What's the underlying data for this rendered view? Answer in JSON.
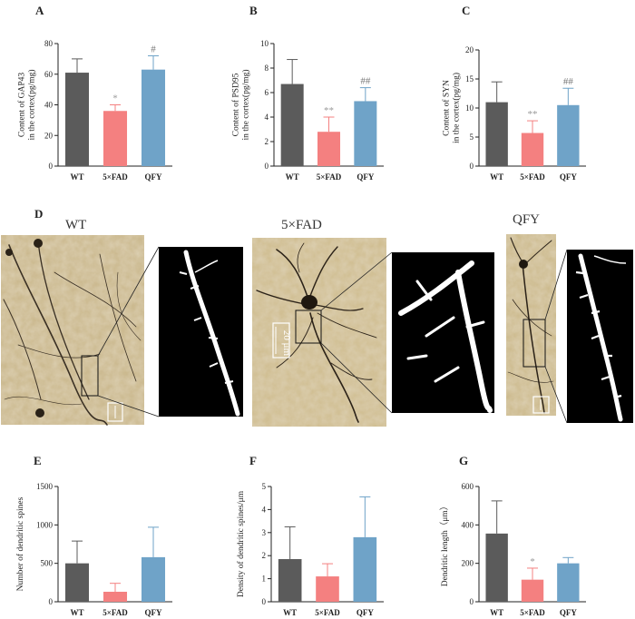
{
  "colors": {
    "WT": "#5b5b5b",
    "5×FAD": "#f48080",
    "QFY": "#6fa3c8",
    "error_bar_WT": "#5b5b5b",
    "error_bar_5×FAD": "#f48080",
    "error_bar_QFY": "#6fa3c8",
    "sig_5×FAD": "#999999",
    "sig_QFY": "#777777"
  },
  "chart_data": [
    {
      "panel": "A",
      "type": "bar",
      "categories": [
        "WT",
        "5×FAD",
        "QFY"
      ],
      "values": [
        61,
        36,
        63
      ],
      "errors": [
        9,
        4,
        9
      ],
      "significance": [
        "",
        "*",
        "#"
      ],
      "ylabel": [
        "Content of GAP43",
        "in  the cortex(pg/mg)"
      ],
      "ylim": [
        0,
        80
      ],
      "yticks": [
        0,
        20,
        40,
        60,
        80
      ]
    },
    {
      "panel": "B",
      "type": "bar",
      "categories": [
        "WT",
        "5×FAD",
        "QFY"
      ],
      "values": [
        6.7,
        2.8,
        5.3
      ],
      "errors": [
        2.0,
        1.2,
        1.1
      ],
      "significance": [
        "",
        "**",
        "##"
      ],
      "ylabel": [
        "Content of PSD95",
        "in the cortex(pg/mg)"
      ],
      "ylim": [
        0,
        10
      ],
      "yticks": [
        0,
        2,
        4,
        6,
        8,
        10
      ]
    },
    {
      "panel": "C",
      "type": "bar",
      "categories": [
        "WT",
        "5×FAD",
        "QFY"
      ],
      "values": [
        11.0,
        5.7,
        10.5
      ],
      "errors": [
        3.5,
        2.1,
        2.9
      ],
      "significance": [
        "",
        "**",
        "##"
      ],
      "ylabel": [
        "Content of SYN",
        "in the cortex(pg/mg)"
      ],
      "ylim": [
        0,
        20
      ],
      "yticks": [
        0,
        5,
        10,
        15,
        20
      ]
    },
    {
      "panel": "E",
      "type": "bar",
      "categories": [
        "WT",
        "5×FAD",
        "QFY"
      ],
      "values": [
        500,
        130,
        580
      ],
      "errors": [
        290,
        110,
        390
      ],
      "significance": [
        "",
        "",
        ""
      ],
      "ylabel": [
        "Number of dendritic spines"
      ],
      "ylim": [
        0,
        1500
      ],
      "yticks": [
        0,
        500,
        1000,
        1500
      ]
    },
    {
      "panel": "F",
      "type": "bar",
      "categories": [
        "WT",
        "5×FAD",
        "QFY"
      ],
      "values": [
        1.85,
        1.1,
        2.8
      ],
      "errors": [
        1.4,
        0.55,
        1.75
      ],
      "significance": [
        "",
        "",
        ""
      ],
      "ylabel": [
        "Density of dendritic spines/μm"
      ],
      "ylim": [
        0,
        5
      ],
      "yticks": [
        0,
        1,
        2,
        3,
        4,
        5
      ]
    },
    {
      "panel": "G",
      "type": "bar",
      "categories": [
        "WT",
        "5×FAD",
        "QFY"
      ],
      "values": [
        355,
        115,
        200
      ],
      "errors": [
        170,
        60,
        30
      ],
      "significance": [
        "",
        "*",
        ""
      ],
      "ylabel": [
        "Dendritic length（μm）"
      ],
      "ylim": [
        0,
        600
      ],
      "yticks": [
        0,
        200,
        400,
        600
      ]
    }
  ],
  "micrographs": {
    "panel": "D",
    "labels": [
      "WT",
      "5×FAD",
      "QFY"
    ],
    "scale_bar": "20 μm"
  }
}
